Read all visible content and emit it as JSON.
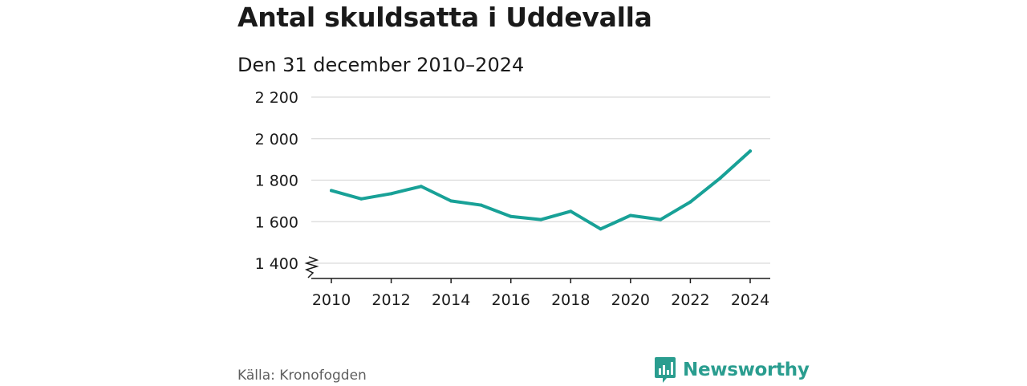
{
  "title": "Antal skuldsatta i Uddevalla",
  "subtitle": "Den 31 december 2010–2024",
  "source": "Källa: Kronofogden",
  "brand": {
    "name": "Newsworthy",
    "icon": "bar-chart-bubble-icon"
  },
  "colors": {
    "line": "#18a197",
    "brand": "#2a9d8f",
    "grid": "#d9d9d9"
  },
  "chart_data": {
    "type": "line",
    "title": "Antal skuldsatta i Uddevalla",
    "subtitle": "Den 31 december 2010–2024",
    "xlabel": "",
    "ylabel": "",
    "x": [
      2010,
      2011,
      2012,
      2013,
      2014,
      2015,
      2016,
      2017,
      2018,
      2019,
      2020,
      2021,
      2022,
      2023,
      2024
    ],
    "series": [
      {
        "name": "Antal skuldsatta",
        "values": [
          1750,
          1710,
          1735,
          1770,
          1700,
          1680,
          1625,
          1610,
          1650,
          1565,
          1630,
          1610,
          1695,
          1810,
          1940
        ]
      }
    ],
    "ylim": [
      1400,
      2200
    ],
    "yticks": [
      1400,
      1600,
      1800,
      2000,
      2200
    ],
    "yticklabels": [
      "1 400",
      "1 600",
      "1 800",
      "2 000",
      "2 200"
    ],
    "xticks": [
      2010,
      2012,
      2014,
      2016,
      2018,
      2020,
      2022,
      2024
    ],
    "xticklabels": [
      "2010",
      "2012",
      "2014",
      "2016",
      "2018",
      "2020",
      "2022",
      "2024"
    ],
    "axis_break": true,
    "grid": true,
    "legend": "none"
  }
}
